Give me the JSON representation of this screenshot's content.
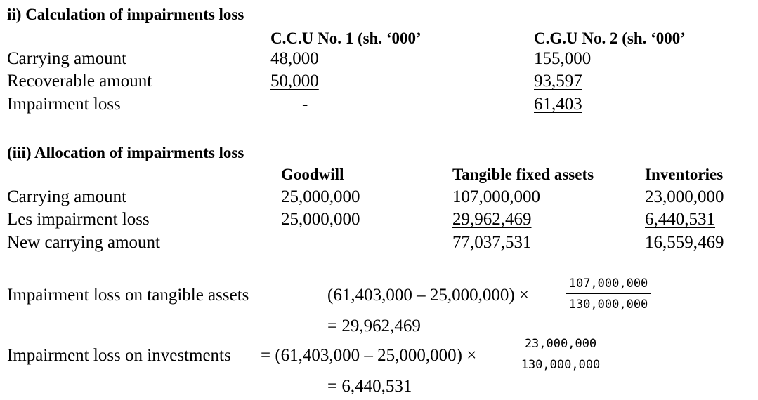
{
  "section2": {
    "heading": "ii) Calculation of impairments loss",
    "col1_header": "C.C.U No. 1 (sh. ‘000’",
    "col2_header": "C.G.U No. 2 (sh. ‘000’",
    "rows": [
      {
        "label": "Carrying  amount",
        "col1": "48,000",
        "col2": "155,000"
      },
      {
        "label": "Recoverable amount",
        "col1": "50,000",
        "col2": "93,597"
      },
      {
        "label": "Impairment loss",
        "col1": "-",
        "col2": "61,403"
      }
    ]
  },
  "section3": {
    "heading": "(iii) Allocation of impairments loss",
    "headers": [
      "Goodwill",
      "Tangible fixed assets",
      "Inventories"
    ],
    "rows": [
      {
        "label": "Carrying  amount",
        "goodwill": "25,000,000",
        "tangible": "107,000,000",
        "inventories": "23,000,000"
      },
      {
        "label": "Les impairment loss",
        "goodwill": "25,000,000",
        "tangible": "29,962,469",
        "inventories": "6,440,531"
      },
      {
        "label": "New carrying  amount",
        "goodwill": "",
        "tangible": "77,037,531",
        "inventories": "16,559,469"
      }
    ]
  },
  "calc": {
    "tangible": {
      "label": "Impairment loss on tangible assets",
      "expression": "(61,403,000 – 25,000,000) ×",
      "numerator": "107,000,000",
      "denominator": "130,000,000",
      "result": "= 29,962,469"
    },
    "investments": {
      "label": "Impairment loss on investments",
      "expression": "= (61,403,000 – 25,000,000) ×",
      "numerator": "23,000,000",
      "denominator": "130,000,000",
      "result": "= 6,440,531"
    }
  }
}
